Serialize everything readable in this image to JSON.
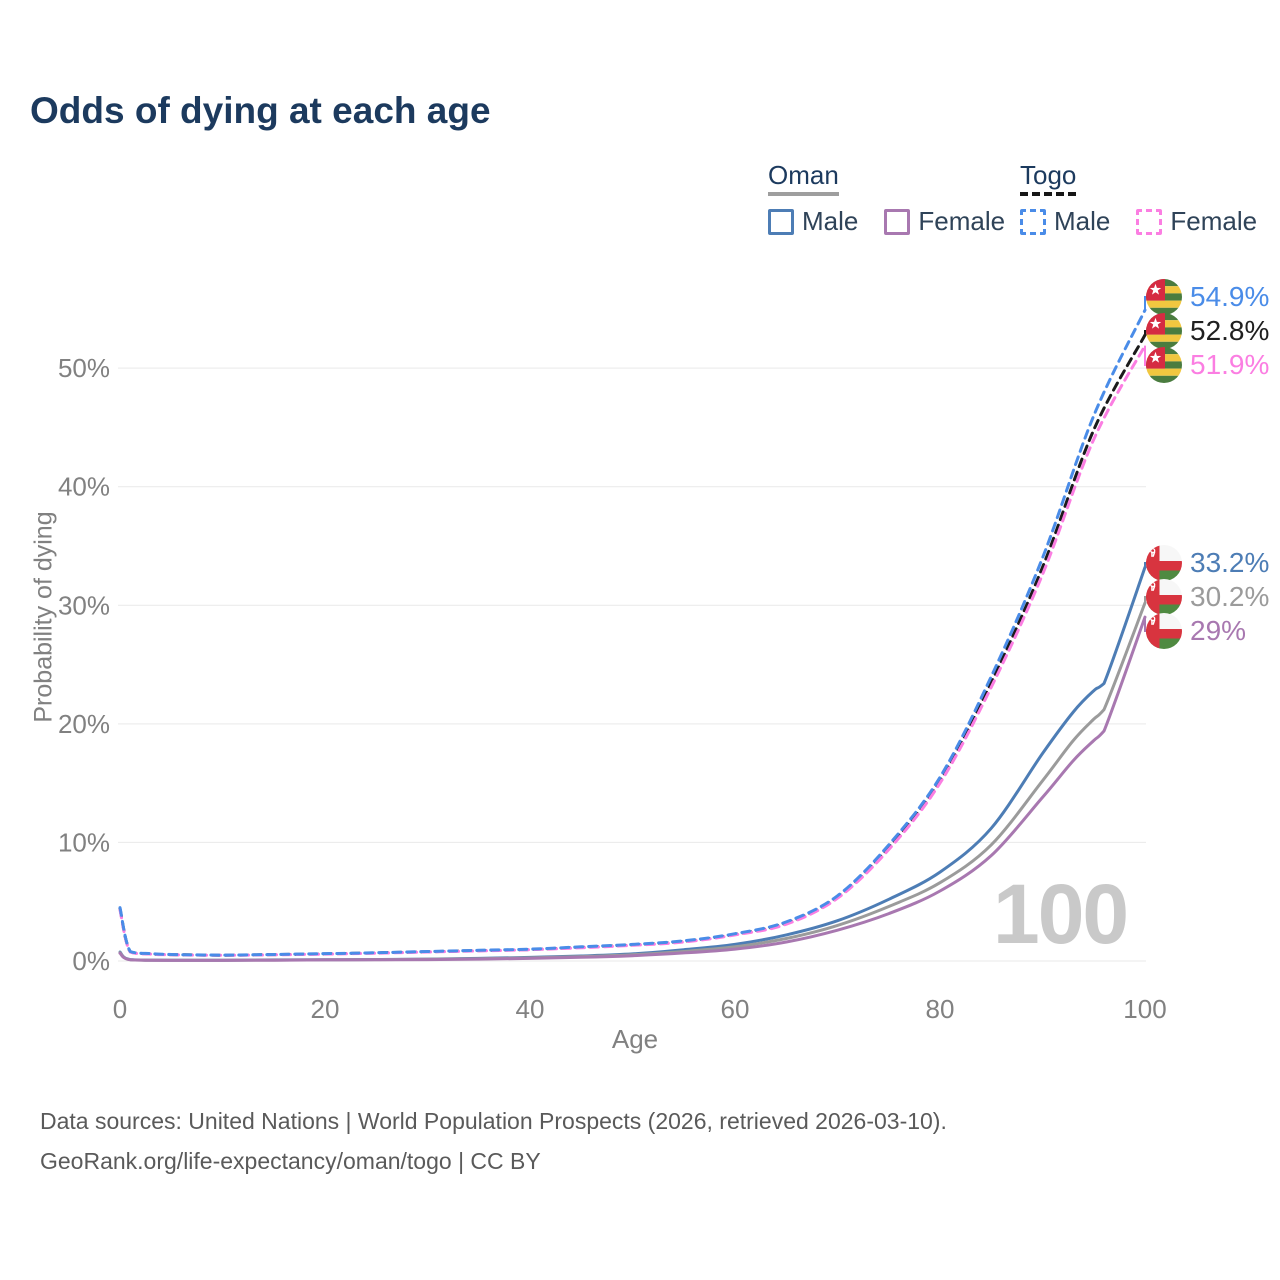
{
  "title": "Odds of dying at each age",
  "watermark": "100",
  "legend": {
    "groups": [
      {
        "label": "Oman",
        "items": [
          {
            "label": "Male"
          },
          {
            "label": "Female"
          }
        ]
      },
      {
        "label": "Togo",
        "items": [
          {
            "label": "Male"
          },
          {
            "label": "Female"
          }
        ]
      }
    ]
  },
  "colors": {
    "title": "#1c3a5e",
    "axis_text": "#818181",
    "grid": "#e9e9e9",
    "watermark": "#c9c9c9",
    "footer": "#5a5a5a",
    "oman_male": "#4d7db5",
    "oman_both": "#9b9b9b",
    "oman_female": "#a878b0",
    "togo_male": "#4a8ce8",
    "togo_both": "#1b1b1b",
    "togo_female": "#fb7ee2"
  },
  "footer": {
    "line1": "Data sources: United Nations | World Population Prospects (2026, retrieved 2026-03-10).",
    "line2": "GeoRank.org/life-expectancy/oman/togo | CC BY"
  },
  "chart_data": {
    "type": "line",
    "title": "Odds of dying at each age",
    "xlabel": "Age",
    "ylabel": "Probability of dying",
    "xlim": [
      0,
      100
    ],
    "ylim": [
      0,
      56
    ],
    "x_ticks": [
      0,
      20,
      40,
      60,
      80,
      100
    ],
    "y_ticks": [
      {
        "value": 0,
        "label": "0%"
      },
      {
        "value": 10,
        "label": "10%"
      },
      {
        "value": 20,
        "label": "20%"
      },
      {
        "value": 30,
        "label": "30%"
      },
      {
        "value": 40,
        "label": "40%"
      },
      {
        "value": 50,
        "label": "50%"
      }
    ],
    "grid": "horizontal",
    "legend_position": "top-right",
    "series": [
      {
        "id": "togo_male",
        "name": "Togo Male",
        "country": "Togo",
        "sex": "Male",
        "flag": "togo",
        "style": "dashed",
        "color": "#4a8ce8",
        "label_color": "#4a8ce8",
        "end_label": "54.9%",
        "end_value": 54.9,
        "points": [
          [
            0,
            4.5
          ],
          [
            1,
            0.8
          ],
          [
            3,
            0.62
          ],
          [
            5,
            0.55
          ],
          [
            10,
            0.5
          ],
          [
            15,
            0.55
          ],
          [
            20,
            0.62
          ],
          [
            25,
            0.7
          ],
          [
            30,
            0.8
          ],
          [
            35,
            0.9
          ],
          [
            40,
            1.0
          ],
          [
            45,
            1.2
          ],
          [
            50,
            1.4
          ],
          [
            55,
            1.7
          ],
          [
            60,
            2.3
          ],
          [
            65,
            3.3
          ],
          [
            70,
            5.5
          ],
          [
            75,
            9.8
          ],
          [
            80,
            15.5
          ],
          [
            85,
            24.0
          ],
          [
            90,
            34.0
          ],
          [
            95,
            46.0
          ],
          [
            100,
            54.9
          ]
        ]
      },
      {
        "id": "togo_both",
        "name": "Togo Both sexes",
        "country": "Togo",
        "sex": "Both",
        "flag": "togo",
        "style": "dashed",
        "color": "#1b1b1b",
        "label_color": "#202020",
        "end_label": "52.8%",
        "end_value": 52.8,
        "points": [
          [
            0,
            4.4
          ],
          [
            1,
            0.78
          ],
          [
            3,
            0.6
          ],
          [
            5,
            0.54
          ],
          [
            10,
            0.49
          ],
          [
            15,
            0.54
          ],
          [
            20,
            0.6
          ],
          [
            25,
            0.68
          ],
          [
            30,
            0.78
          ],
          [
            35,
            0.88
          ],
          [
            40,
            0.97
          ],
          [
            45,
            1.16
          ],
          [
            50,
            1.36
          ],
          [
            55,
            1.65
          ],
          [
            60,
            2.25
          ],
          [
            65,
            3.2
          ],
          [
            70,
            5.4
          ],
          [
            75,
            9.6
          ],
          [
            80,
            15.2
          ],
          [
            85,
            23.5
          ],
          [
            90,
            33.2
          ],
          [
            95,
            44.8
          ],
          [
            100,
            52.8
          ]
        ]
      },
      {
        "id": "togo_female",
        "name": "Togo Female",
        "country": "Togo",
        "sex": "Female",
        "flag": "togo",
        "style": "dashed",
        "color": "#fb7ee2",
        "label_color": "#fb7ee2",
        "end_label": "51.9%",
        "end_value": 51.9,
        "points": [
          [
            0,
            4.3
          ],
          [
            1,
            0.75
          ],
          [
            3,
            0.58
          ],
          [
            5,
            0.52
          ],
          [
            10,
            0.48
          ],
          [
            15,
            0.52
          ],
          [
            20,
            0.58
          ],
          [
            25,
            0.66
          ],
          [
            30,
            0.76
          ],
          [
            35,
            0.85
          ],
          [
            40,
            0.95
          ],
          [
            45,
            1.12
          ],
          [
            50,
            1.32
          ],
          [
            55,
            1.6
          ],
          [
            60,
            2.2
          ],
          [
            65,
            3.1
          ],
          [
            70,
            5.3
          ],
          [
            75,
            9.4
          ],
          [
            80,
            15.0
          ],
          [
            85,
            23.1
          ],
          [
            90,
            32.6
          ],
          [
            95,
            44.0
          ],
          [
            100,
            51.9
          ]
        ]
      },
      {
        "id": "oman_male",
        "name": "Oman Male",
        "country": "Oman",
        "sex": "Male",
        "flag": "oman",
        "style": "solid",
        "color": "#4d7db5",
        "label_color": "#4d7db5",
        "end_label": "33.2%",
        "end_value": 33.2,
        "points": [
          [
            0,
            0.75
          ],
          [
            1,
            0.12
          ],
          [
            5,
            0.07
          ],
          [
            10,
            0.07
          ],
          [
            15,
            0.09
          ],
          [
            20,
            0.11
          ],
          [
            25,
            0.13
          ],
          [
            30,
            0.16
          ],
          [
            35,
            0.22
          ],
          [
            40,
            0.3
          ],
          [
            45,
            0.42
          ],
          [
            50,
            0.6
          ],
          [
            55,
            0.95
          ],
          [
            60,
            1.4
          ],
          [
            65,
            2.2
          ],
          [
            70,
            3.4
          ],
          [
            75,
            5.2
          ],
          [
            80,
            7.5
          ],
          [
            85,
            11.2
          ],
          [
            90,
            17.5
          ],
          [
            93,
            21.0
          ],
          [
            95,
            22.8
          ],
          [
            96,
            23.4
          ],
          [
            100,
            33.2
          ]
        ]
      },
      {
        "id": "oman_both",
        "name": "Oman Both sexes",
        "country": "Oman",
        "sex": "Both",
        "flag": "oman",
        "style": "solid",
        "color": "#9b9b9b",
        "label_color": "#9b9b9b",
        "end_label": "30.2%",
        "end_value": 30.2,
        "points": [
          [
            0,
            0.7
          ],
          [
            1,
            0.11
          ],
          [
            5,
            0.06
          ],
          [
            10,
            0.06
          ],
          [
            15,
            0.08
          ],
          [
            20,
            0.1
          ],
          [
            25,
            0.12
          ],
          [
            30,
            0.14
          ],
          [
            35,
            0.19
          ],
          [
            40,
            0.26
          ],
          [
            45,
            0.37
          ],
          [
            50,
            0.53
          ],
          [
            55,
            0.8
          ],
          [
            60,
            1.2
          ],
          [
            65,
            1.9
          ],
          [
            70,
            3.0
          ],
          [
            75,
            4.6
          ],
          [
            80,
            6.6
          ],
          [
            85,
            9.8
          ],
          [
            90,
            15.2
          ],
          [
            93,
            18.6
          ],
          [
            95,
            20.4
          ],
          [
            96,
            21.2
          ],
          [
            100,
            30.2
          ]
        ]
      },
      {
        "id": "oman_female",
        "name": "Oman Female",
        "country": "Oman",
        "sex": "Female",
        "flag": "oman",
        "style": "solid",
        "color": "#a878b0",
        "label_color": "#a878b0",
        "end_label": "29%",
        "end_value": 29.0,
        "points": [
          [
            0,
            0.65
          ],
          [
            1,
            0.1
          ],
          [
            5,
            0.05
          ],
          [
            10,
            0.05
          ],
          [
            15,
            0.07
          ],
          [
            20,
            0.09
          ],
          [
            25,
            0.1
          ],
          [
            30,
            0.12
          ],
          [
            35,
            0.16
          ],
          [
            40,
            0.22
          ],
          [
            45,
            0.31
          ],
          [
            50,
            0.45
          ],
          [
            55,
            0.68
          ],
          [
            60,
            1.0
          ],
          [
            65,
            1.6
          ],
          [
            70,
            2.6
          ],
          [
            75,
            4.0
          ],
          [
            80,
            5.9
          ],
          [
            85,
            8.9
          ],
          [
            90,
            13.8
          ],
          [
            93,
            16.9
          ],
          [
            95,
            18.6
          ],
          [
            96,
            19.4
          ],
          [
            100,
            29.0
          ]
        ]
      }
    ]
  }
}
